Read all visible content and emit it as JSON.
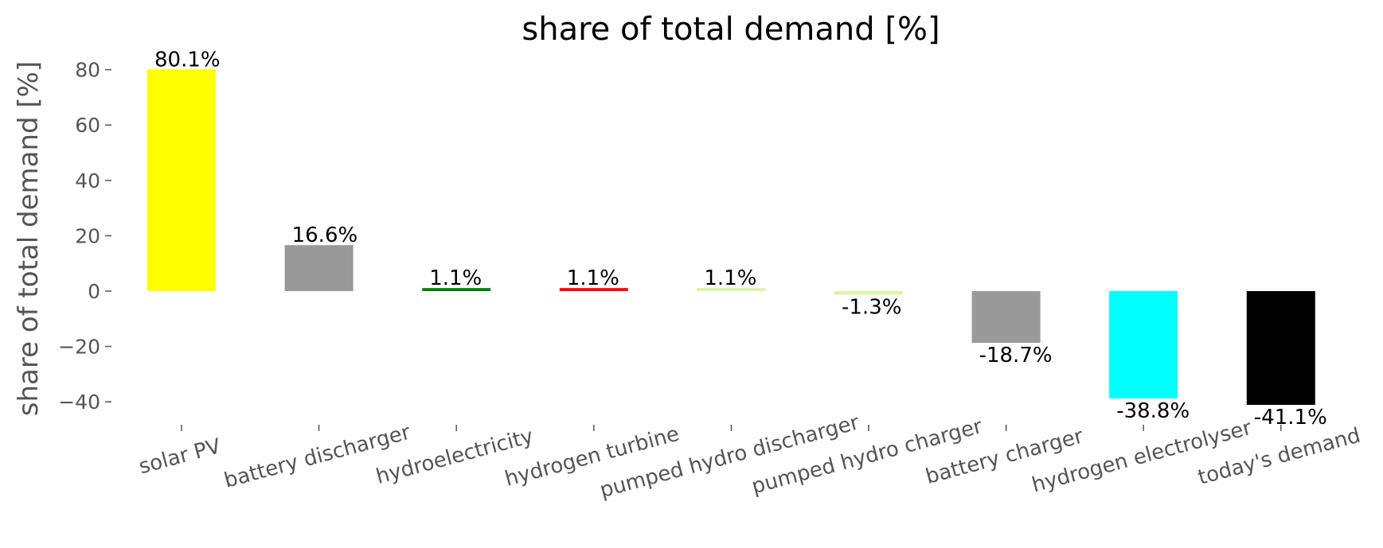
{
  "chart_data": {
    "type": "bar",
    "title": "share of total demand [%]",
    "ylabel": "share of total demand [%]",
    "xlabel": "",
    "ylim": [
      -48,
      90
    ],
    "yticks": [
      80,
      60,
      40,
      20,
      0,
      -20,
      -40
    ],
    "ytick_labels": [
      "80",
      "60",
      "40",
      "20",
      "0",
      "−20",
      "−40"
    ],
    "grid": false,
    "categories": [
      "solar PV",
      "battery discharger",
      "hydroelectricity",
      "hydrogen turbine",
      "pumped hydro discharger",
      "pumped hydro charger",
      "battery charger",
      "hydrogen electrolyser",
      "today's demand"
    ],
    "values": [
      80.1,
      16.6,
      1.1,
      1.1,
      1.1,
      -1.3,
      -18.7,
      -38.8,
      -41.1
    ],
    "data_labels": [
      "80.1%",
      "16.6%",
      "1.1%",
      "1.1%",
      "1.1%",
      "-1.3%",
      "-18.7%",
      "-38.8%",
      "-41.1%"
    ],
    "colors": [
      "#ffff00",
      "#999999",
      "#008000",
      "#ff0000",
      "#d9f5a8",
      "#d9f5a8",
      "#999999",
      "#00ffff",
      "#000000"
    ]
  }
}
